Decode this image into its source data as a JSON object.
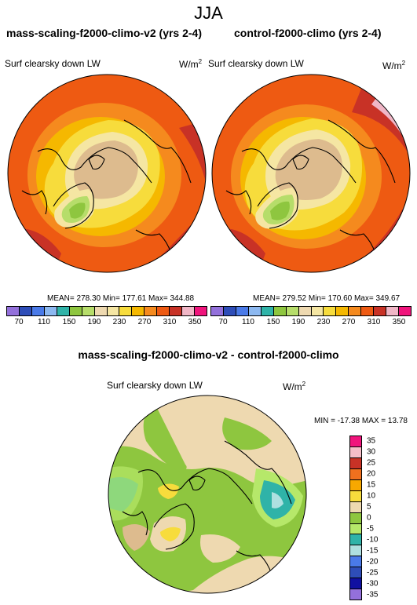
{
  "season": "JJA",
  "panels": [
    {
      "title": "mass-scaling-f2000-climo-v2 (yrs 2-4)",
      "subtitle": "Surf clearsky down LW",
      "units": "W/m",
      "units_exp": "2",
      "stats": "MEAN= 278.30  Min= 177.61  Max= 344.88"
    },
    {
      "title": "control-f2000-climo (yrs 2-4)",
      "subtitle": "Surf clearsky down LW",
      "units": "W/m",
      "units_exp": "2",
      "stats": "MEAN= 279.52  Min= 170.60  Max= 349.67"
    }
  ],
  "diff": {
    "title": "mass-scaling-f2000-climo-v2 - control-f2000-climo",
    "subtitle": "Surf clearsky down LW",
    "units": "W/m",
    "units_exp": "2",
    "minmax": "MIN = -17.38 MAX =  13.78"
  },
  "colorbar_abs": {
    "colors": [
      "#9370DB",
      "#2E4DB8",
      "#4A7AE8",
      "#8CB8F0",
      "#2FB3A8",
      "#8EC63F",
      "#B6DD6A",
      "#EED9B0",
      "#F5E6A3",
      "#F7DC3C",
      "#F5B800",
      "#F58A1E",
      "#EE5A12",
      "#C83226",
      "#F0B6C6",
      "#F0147C"
    ],
    "labels": [
      "70",
      "110",
      "150",
      "190",
      "230",
      "270",
      "310",
      "350"
    ]
  },
  "colorbar_diff": {
    "colors": [
      "#F0147C",
      "#F5BEC8",
      "#C83226",
      "#F0701E",
      "#F7A800",
      "#F7DC3C",
      "#EED9B0",
      "#8EC63F",
      "#B6E86A",
      "#2FB3A8",
      "#AEE0E0",
      "#4A7AE8",
      "#2E4DB8",
      "#1010A0",
      "#9370DB"
    ],
    "labels": [
      "35",
      "30",
      "25",
      "20",
      "15",
      "10",
      "5",
      "0",
      "-5",
      "-10",
      "-15",
      "-20",
      "-25",
      "-30",
      "-35"
    ]
  }
}
